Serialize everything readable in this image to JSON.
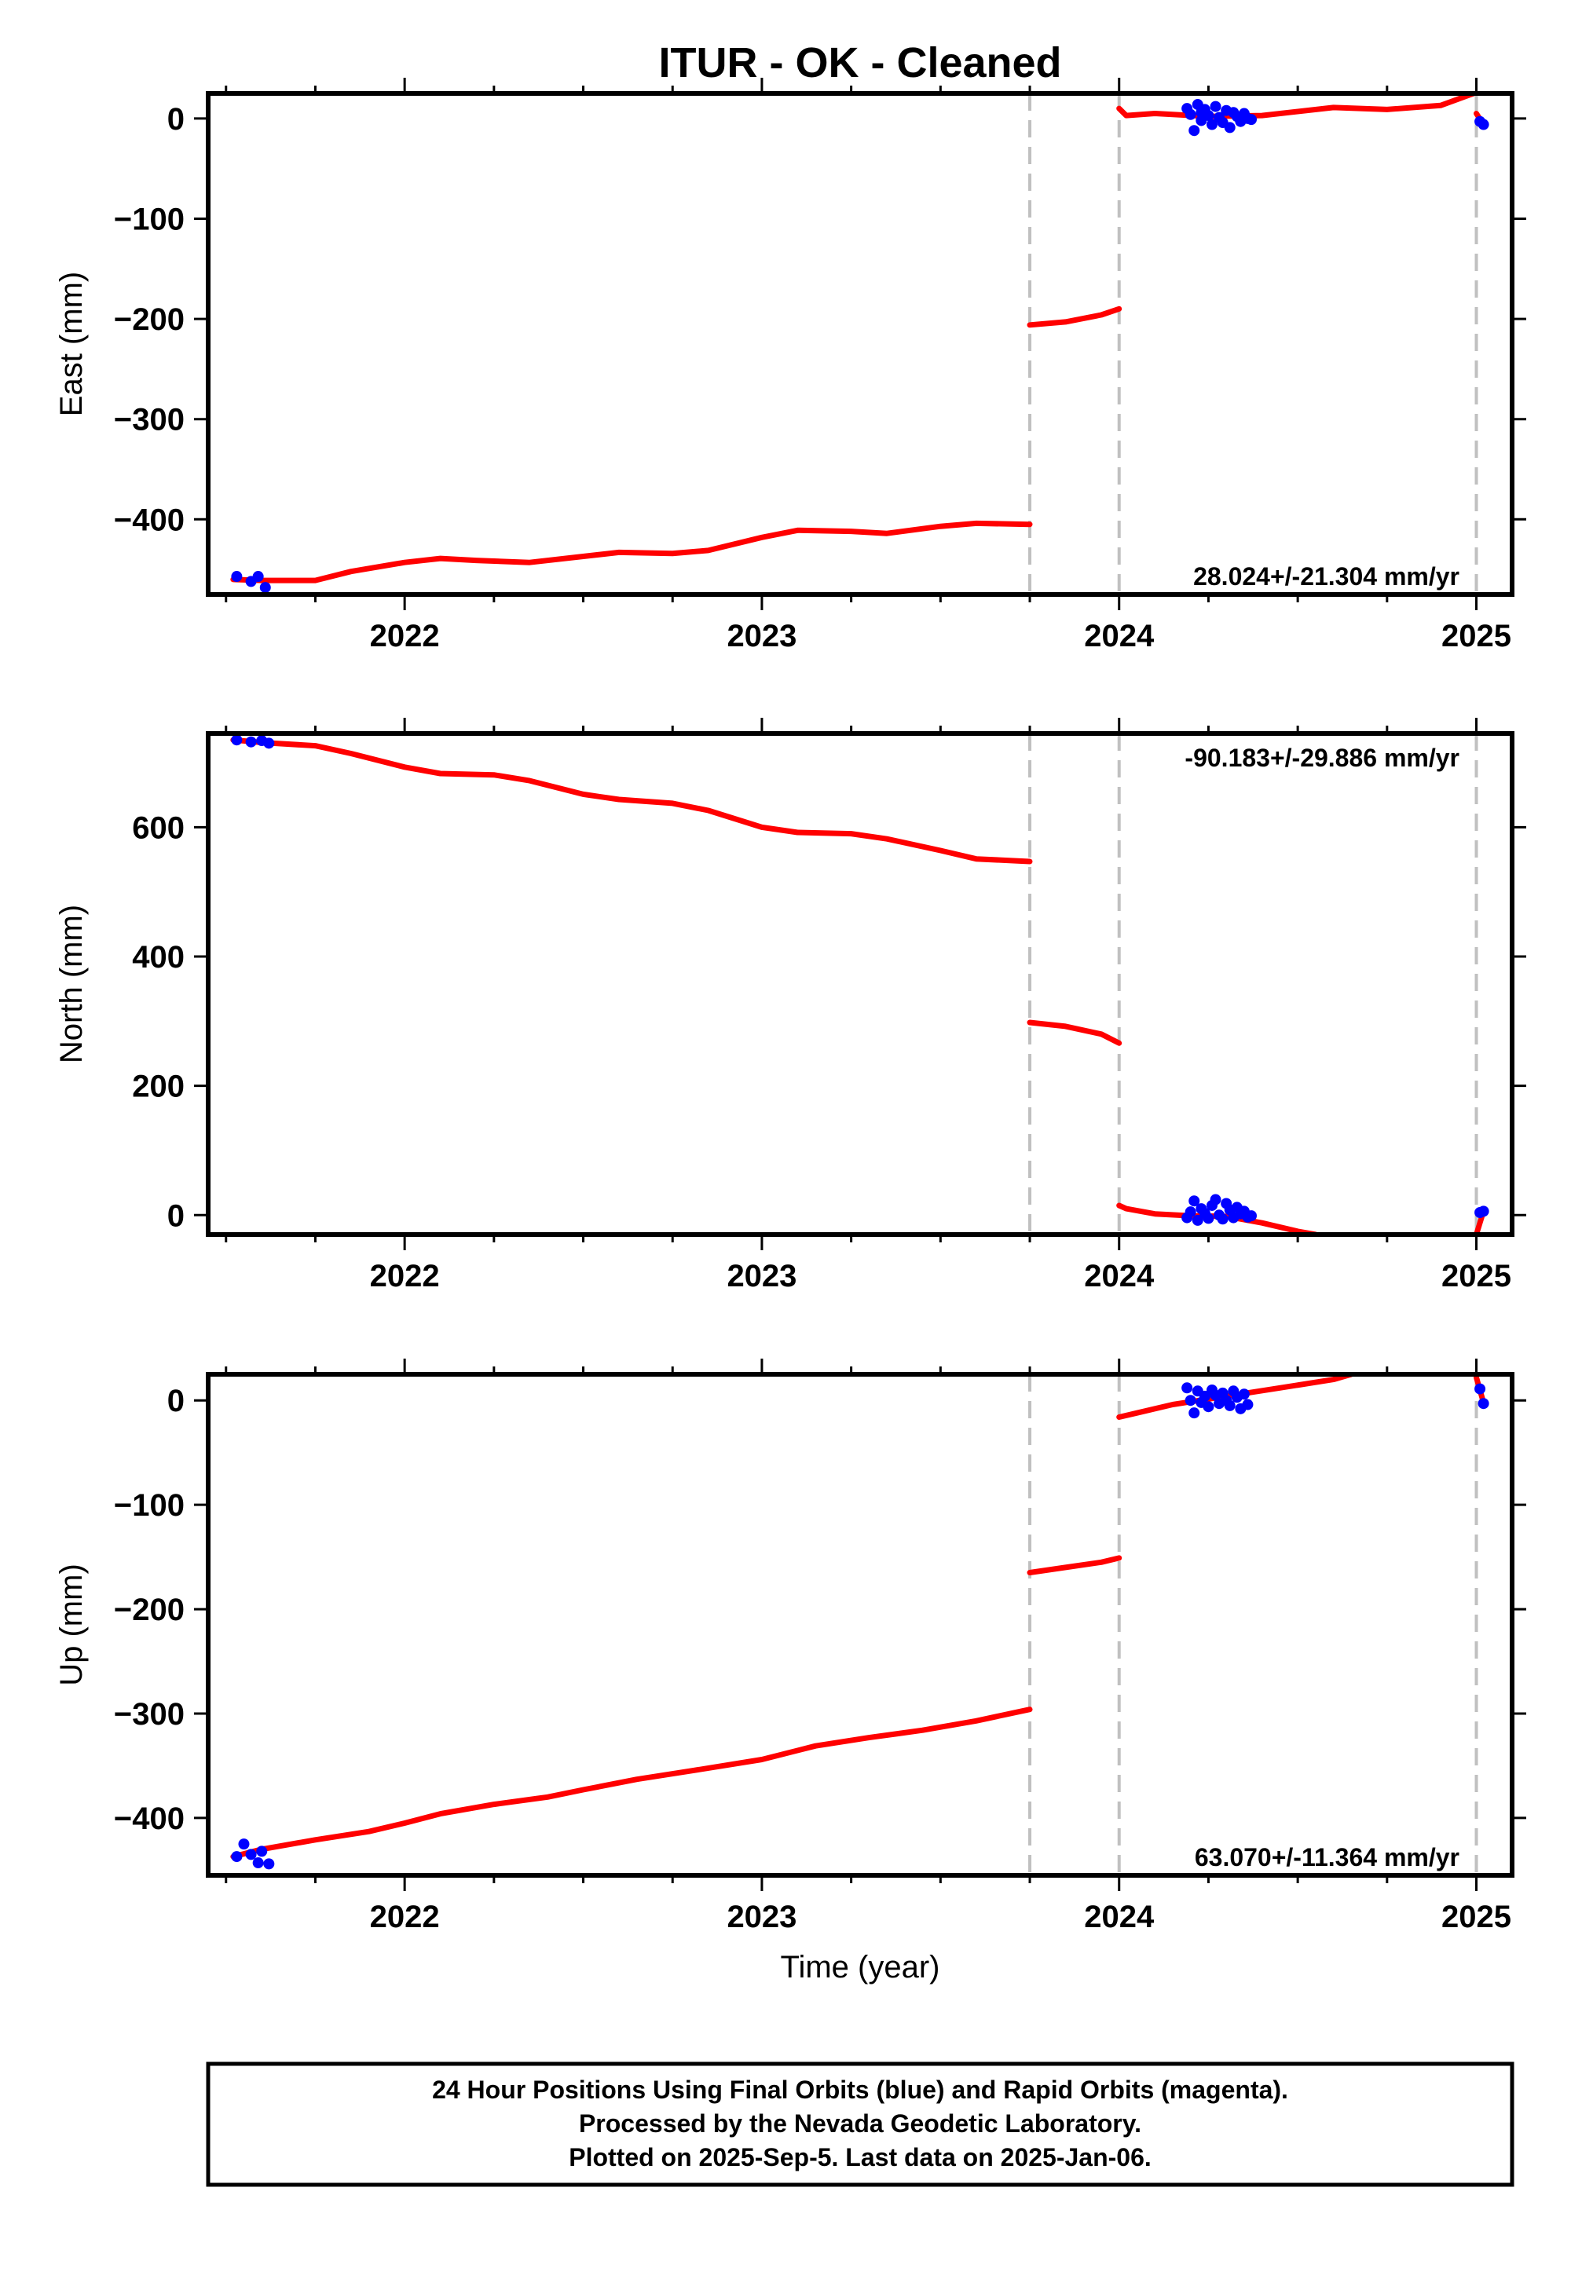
{
  "title": "ITUR  - OK - Cleaned",
  "xlabel": "Time (year)",
  "footer": {
    "lines": [
      "24 Hour Positions Using Final Orbits (blue) and Rapid Orbits (magenta).",
      "Processed by the Nevada Geodetic Laboratory.",
      "Plotted on 2025-Sep-5. Last data on 2025-Jan-06."
    ]
  },
  "colors": {
    "model_line": "#ff0000",
    "final_orbits_points": "#0000ff",
    "event_lines": "#c0c0c0",
    "frame": "#000000"
  },
  "chart_data": [
    {
      "type": "line",
      "panel": "east",
      "ylabel": "East (mm)",
      "rate": "28.024+/-21.304 mm/yr",
      "rate_placement": "bottom-right",
      "xlim": [
        2021.45,
        2025.1
      ],
      "ylim": [
        -475,
        25
      ],
      "x_ticks": [
        "2022",
        "2023",
        "2024",
        "2025"
      ],
      "y_ticks": [
        0,
        -100,
        -200,
        -300,
        -400
      ],
      "event_lines_x": [
        2023.75,
        2024.0,
        2025.0
      ],
      "model_segments": [
        {
          "x": [
            2021.52,
            2021.6,
            2021.75,
            2021.85,
            2022.0,
            2022.1,
            2022.2,
            2022.35,
            2022.5,
            2022.6,
            2022.75,
            2022.85,
            2023.0,
            2023.1,
            2023.25,
            2023.35,
            2023.5,
            2023.6,
            2023.75
          ],
          "y": [
            -460,
            -461,
            -461,
            -452,
            -443,
            -439,
            -441,
            -443,
            -437,
            -433,
            -434,
            -431,
            -418,
            -411,
            -412,
            -414,
            -407,
            -404,
            -405
          ]
        },
        {
          "x": [
            2023.75,
            2023.85,
            2023.95,
            2024.0
          ],
          "y": [
            -206,
            -203,
            -196,
            -190
          ]
        },
        {
          "x": [
            2024.0,
            2024.02,
            2024.1,
            2024.25,
            2024.4,
            2024.6,
            2024.75,
            2024.9,
            2025.0
          ],
          "y": [
            10,
            3,
            5,
            2,
            3,
            11,
            9,
            13,
            26
          ]
        },
        {
          "x": [
            2025.0,
            2025.02
          ],
          "y": [
            5,
            -6
          ]
        }
      ],
      "points": {
        "x": [
          2021.53,
          2021.57,
          2021.59,
          2021.61,
          2024.19,
          2024.2,
          2024.21,
          2024.22,
          2024.23,
          2024.23,
          2024.24,
          2024.25,
          2024.26,
          2024.27,
          2024.28,
          2024.29,
          2024.3,
          2024.31,
          2024.32,
          2024.33,
          2024.34,
          2024.35,
          2024.36,
          2024.37,
          2025.01,
          2025.02
        ],
        "y": [
          -457,
          -462,
          -457,
          -468,
          10,
          4,
          -12,
          14,
          6,
          -2,
          9,
          3,
          -6,
          12,
          1,
          -4,
          8,
          -9,
          6,
          2,
          -3,
          5,
          0,
          -1,
          -3,
          -6
        ]
      }
    },
    {
      "type": "line",
      "panel": "north",
      "ylabel": "North (mm)",
      "rate": "-90.183+/-29.886 mm/yr",
      "rate_placement": "top-right",
      "xlim": [
        2021.45,
        2025.1
      ],
      "ylim": [
        -30,
        745
      ],
      "x_ticks": [
        "2022",
        "2023",
        "2024",
        "2025"
      ],
      "y_ticks": [
        0,
        200,
        400,
        600
      ],
      "event_lines_x": [
        2023.75,
        2024.0,
        2025.0
      ],
      "model_segments": [
        {
          "x": [
            2021.52,
            2021.6,
            2021.75,
            2021.85,
            2022.0,
            2022.1,
            2022.25,
            2022.35,
            2022.5,
            2022.6,
            2022.75,
            2022.85,
            2023.0,
            2023.1,
            2023.25,
            2023.35,
            2023.5,
            2023.6,
            2023.75
          ],
          "y": [
            735,
            731,
            726,
            714,
            693,
            683,
            681,
            672,
            651,
            643,
            637,
            626,
            600,
            592,
            590,
            582,
            564,
            551,
            547
          ]
        },
        {
          "x": [
            2023.75,
            2023.85,
            2023.95,
            2024.0
          ],
          "y": [
            298,
            292,
            280,
            266
          ]
        },
        {
          "x": [
            2024.0,
            2024.02,
            2024.1,
            2024.2,
            2024.3,
            2024.4,
            2024.5,
            2024.55
          ],
          "y": [
            15,
            10,
            2,
            -1,
            -2,
            -12,
            -25,
            -30
          ]
        },
        {
          "x": [
            2025.0,
            2025.02
          ],
          "y": [
            -30,
            6
          ]
        }
      ],
      "points": {
        "x": [
          2021.53,
          2021.57,
          2021.6,
          2021.62,
          2024.19,
          2024.2,
          2024.21,
          2024.22,
          2024.23,
          2024.24,
          2024.25,
          2024.26,
          2024.27,
          2024.28,
          2024.29,
          2024.3,
          2024.31,
          2024.32,
          2024.33,
          2024.34,
          2024.35,
          2024.36,
          2024.37,
          2025.01,
          2025.02
        ],
        "y": [
          735,
          732,
          734,
          730,
          -4,
          5,
          22,
          -8,
          10,
          3,
          -5,
          15,
          24,
          0,
          -6,
          18,
          8,
          -4,
          12,
          2,
          6,
          -3,
          -1,
          4,
          6
        ]
      }
    },
    {
      "type": "line",
      "panel": "up",
      "ylabel": "Up (mm)",
      "rate": "63.070+/-11.364 mm/yr",
      "rate_placement": "bottom-right",
      "xlim": [
        2021.45,
        2025.1
      ],
      "ylim": [
        -455,
        25
      ],
      "x_ticks": [
        "2022",
        "2023",
        "2024",
        "2025"
      ],
      "y_ticks": [
        0,
        -100,
        -200,
        -300,
        -400
      ],
      "event_lines_x": [
        2023.75,
        2024.0,
        2025.0
      ],
      "model_segments": [
        {
          "x": [
            2021.52,
            2021.6,
            2021.75,
            2021.9,
            2022.0,
            2022.1,
            2022.25,
            2022.4,
            2022.5,
            2022.65,
            2022.8,
            2023.0,
            2023.15,
            2023.3,
            2023.45,
            2023.6,
            2023.75
          ],
          "y": [
            -437,
            -430,
            -421,
            -413,
            -405,
            -396,
            -387,
            -380,
            -373,
            -363,
            -355,
            -344,
            -331,
            -323,
            -316,
            -307,
            -296
          ]
        },
        {
          "x": [
            2023.75,
            2023.85,
            2023.95,
            2024.0
          ],
          "y": [
            -165,
            -160,
            -155,
            -151
          ]
        },
        {
          "x": [
            2024.0,
            2024.05,
            2024.15,
            2024.3,
            2024.45,
            2024.6,
            2024.65
          ],
          "y": [
            -16,
            -12,
            -4,
            4,
            12,
            20,
            25
          ]
        },
        {
          "x": [
            2025.0,
            2025.02
          ],
          "y": [
            22,
            -2
          ]
        }
      ],
      "points": {
        "x": [
          2021.53,
          2021.55,
          2021.57,
          2021.59,
          2021.6,
          2021.62,
          2024.19,
          2024.2,
          2024.21,
          2024.22,
          2024.23,
          2024.24,
          2024.25,
          2024.26,
          2024.27,
          2024.28,
          2024.29,
          2024.3,
          2024.31,
          2024.32,
          2024.33,
          2024.34,
          2024.35,
          2024.36,
          2025.01,
          2025.02
        ],
        "y": [
          -437,
          -425,
          -435,
          -443,
          -432,
          -444,
          12,
          0,
          -12,
          9,
          -2,
          4,
          -6,
          10,
          5,
          -3,
          7,
          0,
          -5,
          9,
          3,
          -8,
          6,
          -4,
          11,
          -3
        ]
      }
    }
  ]
}
